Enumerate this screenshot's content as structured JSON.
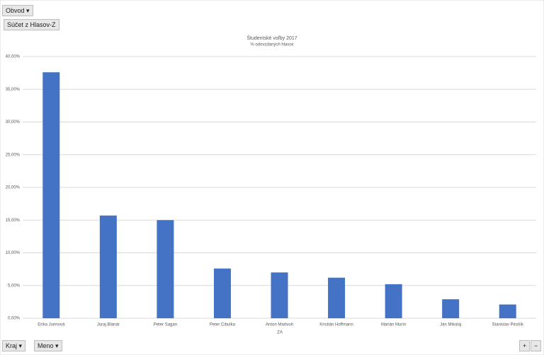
{
  "chart_data": {
    "type": "bar",
    "title": "Študentské voľby 2017",
    "subtitle": "% odovzdaných hlasov",
    "x_label": "ZA",
    "categories": [
      "Erika Jurinová",
      "Juraj Blanár",
      "Peter Sagan",
      "Peter Cibulka",
      "Anton Martvoň",
      "Kristián Hoffmann",
      "Marián Murín",
      "Ján Mikolaj",
      "Stanislav Pirošík"
    ],
    "values": [
      37.6,
      15.7,
      15.0,
      7.6,
      7.0,
      6.2,
      5.2,
      2.9,
      2.1
    ],
    "color": "#4472c4",
    "ylim": [
      0,
      40
    ],
    "yticks": [
      {
        "value": 0,
        "label": "0,00%"
      },
      {
        "value": 5,
        "label": "5,00%"
      },
      {
        "value": 10,
        "label": "10,00%"
      },
      {
        "value": 15,
        "label": "15,00%"
      },
      {
        "value": 20,
        "label": "20,00%"
      },
      {
        "value": 25,
        "label": "25,00%"
      },
      {
        "value": 30,
        "label": "30,00%"
      },
      {
        "value": 35,
        "label": "35,00%"
      },
      {
        "value": 40,
        "label": "40,00%"
      }
    ],
    "grid": true
  },
  "pivot_buttons": {
    "filter": "Obvod",
    "value_field": "Súčet z Hlasov-Z",
    "axis_fields": [
      "Kraj",
      "Meno"
    ],
    "zoom": [
      "+",
      "−"
    ]
  }
}
